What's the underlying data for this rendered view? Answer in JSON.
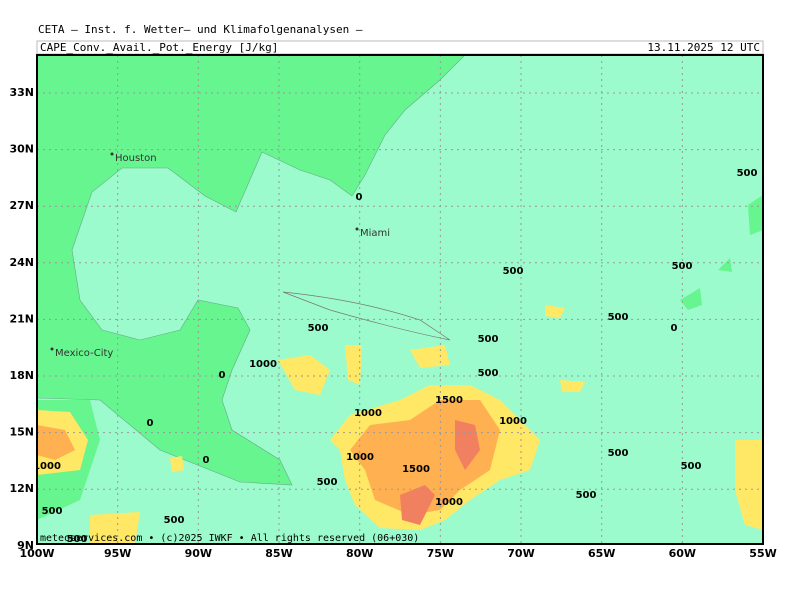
{
  "header": {
    "model": "CETA – Inst. f. Wetter– und Klimafolgenanalysen –",
    "field": "CAPE_Conv._Avail._Pot._Energy [J/kg]",
    "date": "13.11.2025 12 UTC"
  },
  "axes": {
    "lat_labels": [
      "33N",
      "30N",
      "27N",
      "24N",
      "21N",
      "18N",
      "15N",
      "12N",
      "9N"
    ],
    "lon_labels": [
      "100W",
      "95W",
      "90W",
      "85W",
      "80W",
      "75W",
      "70W",
      "65W",
      "60W",
      "55W"
    ]
  },
  "cities": [
    "Houston",
    "Miami",
    "Mexico-City"
  ],
  "contour_labels": [
    "0",
    "500",
    "500",
    "500",
    "500",
    "0",
    "500",
    "500",
    "1000",
    "0",
    "500",
    "1500",
    "1000",
    "1000",
    "0",
    "1000",
    "0",
    "500",
    "500",
    "1500",
    "1000",
    "500",
    "500",
    "1000",
    "500",
    "500",
    "500"
  ],
  "footer": "meteoservices.com • (c)2025 IWKF • All rights reserved (06+030)"
}
